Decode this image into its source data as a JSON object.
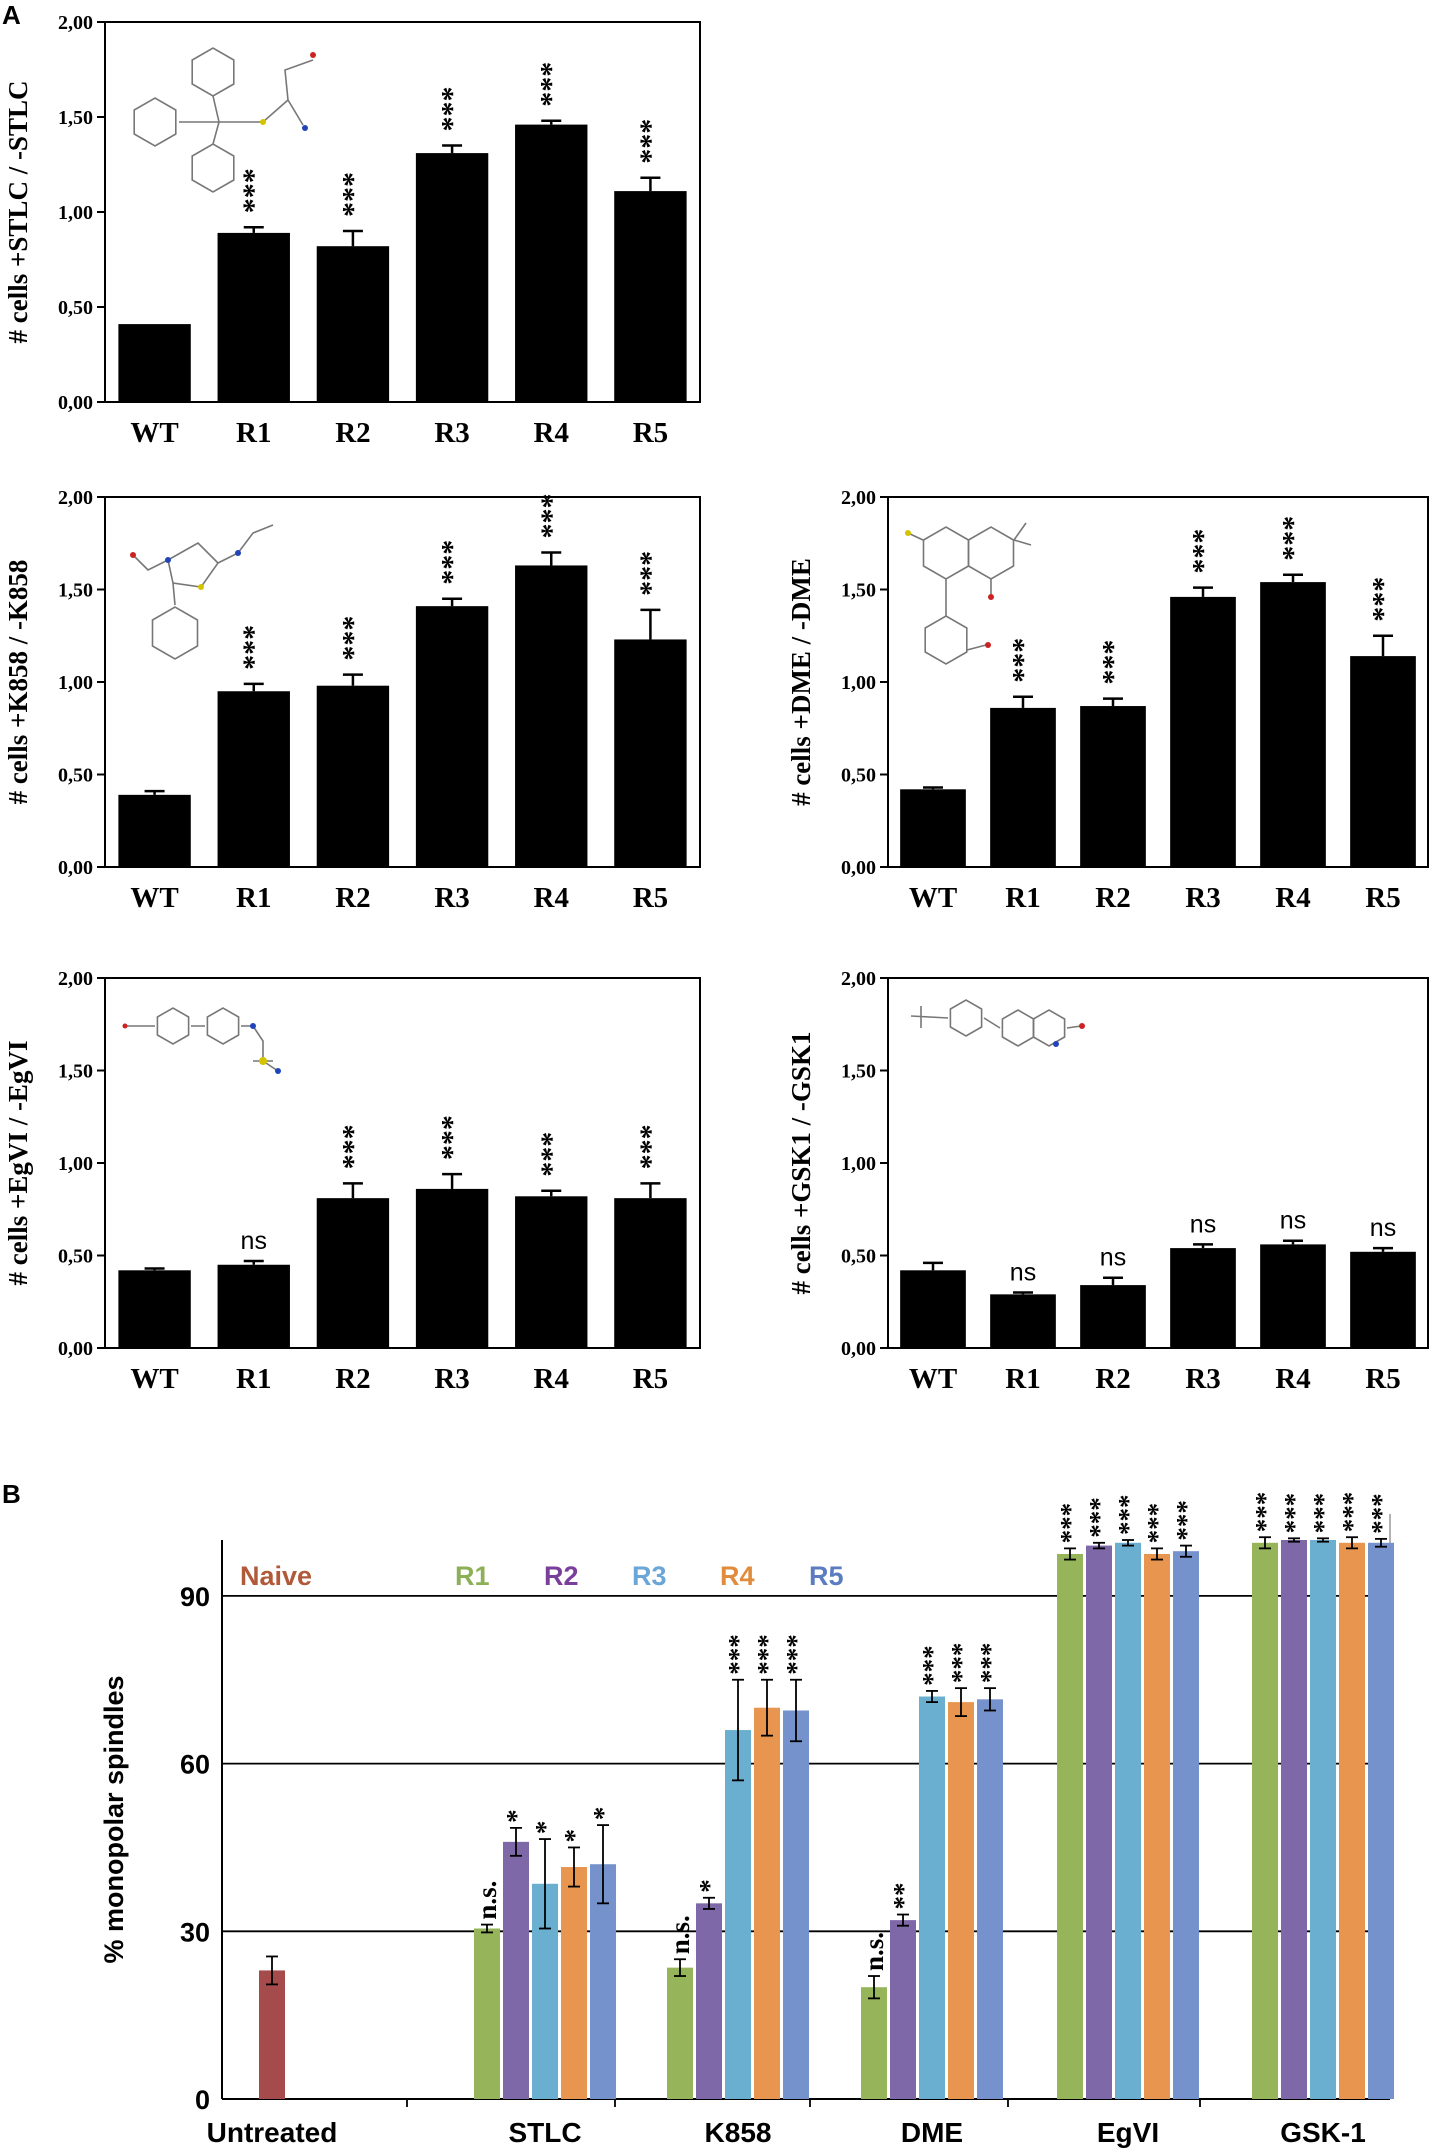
{
  "panel_labels": {
    "a": "A",
    "b": "B"
  },
  "charts_a": [
    {
      "id": "stlc",
      "ylabel": "# cells +STLC / -STLC",
      "categories": [
        "WT",
        "R1",
        "R2",
        "R3",
        "R4",
        "R5"
      ],
      "values": [
        0.41,
        0.89,
        0.82,
        1.31,
        1.46,
        1.11
      ],
      "errors": [
        0.0,
        0.03,
        0.08,
        0.04,
        0.02,
        0.07
      ],
      "annotations": [
        "",
        "***",
        "***",
        "***",
        "***",
        "***"
      ],
      "yticks": [
        "0,00",
        "0,50",
        "1,00",
        "1,50",
        "2,00"
      ],
      "ylim": [
        0,
        2
      ],
      "structure_icon": "stlc-structure"
    },
    {
      "id": "k858",
      "ylabel": "# cells +K858 / -K858",
      "categories": [
        "WT",
        "R1",
        "R2",
        "R3",
        "R4",
        "R5"
      ],
      "values": [
        0.39,
        0.95,
        0.98,
        1.41,
        1.63,
        1.23
      ],
      "errors": [
        0.02,
        0.04,
        0.06,
        0.04,
        0.07,
        0.16
      ],
      "annotations": [
        "",
        "***",
        "***",
        "***",
        "***",
        "***"
      ],
      "yticks": [
        "0,00",
        "0,50",
        "1,00",
        "1,50",
        "2,00"
      ],
      "ylim": [
        0,
        2
      ],
      "structure_icon": "k858-structure"
    },
    {
      "id": "dme",
      "ylabel": "# cells +DME / -DME",
      "categories": [
        "WT",
        "R1",
        "R2",
        "R3",
        "R4",
        "R5"
      ],
      "values": [
        0.42,
        0.86,
        0.87,
        1.46,
        1.54,
        1.14
      ],
      "errors": [
        0.01,
        0.06,
        0.04,
        0.05,
        0.04,
        0.11
      ],
      "annotations": [
        "",
        "***",
        "***",
        "***",
        "***",
        "***"
      ],
      "yticks": [
        "0,00",
        "0,50",
        "1,00",
        "1,50",
        "2,00"
      ],
      "ylim": [
        0,
        2
      ],
      "structure_icon": "dme-structure"
    },
    {
      "id": "egvi",
      "ylabel": "# cells +EgVI / -EgVI",
      "categories": [
        "WT",
        "R1",
        "R2",
        "R3",
        "R4",
        "R5"
      ],
      "values": [
        0.42,
        0.45,
        0.81,
        0.86,
        0.82,
        0.81
      ],
      "errors": [
        0.01,
        0.02,
        0.08,
        0.08,
        0.03,
        0.08
      ],
      "annotations": [
        "",
        "ns",
        "***",
        "***",
        "***",
        "***"
      ],
      "yticks": [
        "0,00",
        "0,50",
        "1,00",
        "1,50",
        "2,00"
      ],
      "ylim": [
        0,
        2
      ],
      "structure_icon": "egvi-structure"
    },
    {
      "id": "gsk1",
      "ylabel": "# cells +GSK1 / -GSK1",
      "categories": [
        "WT",
        "R1",
        "R2",
        "R3",
        "R4",
        "R5"
      ],
      "values": [
        0.42,
        0.29,
        0.34,
        0.54,
        0.56,
        0.52
      ],
      "errors": [
        0.04,
        0.01,
        0.04,
        0.02,
        0.02,
        0.02
      ],
      "annotations": [
        "",
        "ns",
        "ns",
        "ns",
        "ns",
        "ns"
      ],
      "yticks": [
        "0,00",
        "0,50",
        "1,00",
        "1,50",
        "2,00"
      ],
      "ylim": [
        0,
        2
      ],
      "structure_icon": "gsk1-structure"
    }
  ],
  "chart_data": {
    "type": "bar",
    "ylabel": "% monopolar spindles",
    "xlabel": "",
    "ylim": [
      0,
      100
    ],
    "yticks": [
      "0",
      "30",
      "60",
      "90"
    ],
    "grid": true,
    "categories": [
      "Untreated",
      "STLC",
      "K858",
      "DME",
      "EgVI",
      "GSK-1"
    ],
    "legend": [
      {
        "name": "Naive",
        "color": "#b05a3a"
      },
      {
        "name": "R1",
        "color": "#8db057"
      },
      {
        "name": "R2",
        "color": "#7a3f9a"
      },
      {
        "name": "R3",
        "color": "#6aa6d8"
      },
      {
        "name": "R4",
        "color": "#e08c3c"
      },
      {
        "name": "R5",
        "color": "#5b7cc0"
      }
    ],
    "groups": [
      {
        "category": "Untreated",
        "bars": [
          {
            "series": "Naive",
            "value": 23,
            "error": 2.5,
            "color": "#a64b4b",
            "label": ""
          }
        ]
      },
      {
        "category": "STLC",
        "bars": [
          {
            "series": "R1",
            "value": 30.5,
            "error": 0.7,
            "color": "#96b55a",
            "label": "n.s."
          },
          {
            "series": "R2",
            "value": 46,
            "error": 2.5,
            "color": "#7e68a8",
            "label": "*"
          },
          {
            "series": "R3",
            "value": 38.5,
            "error": 8,
            "color": "#6aaed0",
            "label": "*"
          },
          {
            "series": "R4",
            "value": 41.5,
            "error": 3.5,
            "color": "#e8964f",
            "label": "*"
          },
          {
            "series": "R5",
            "value": 42,
            "error": 7,
            "color": "#7592cc",
            "label": "*"
          }
        ]
      },
      {
        "category": "K858",
        "bars": [
          {
            "series": "R1",
            "value": 23.5,
            "error": 1.5,
            "color": "#96b55a",
            "label": "n.s."
          },
          {
            "series": "R2",
            "value": 35,
            "error": 1,
            "color": "#7e68a8",
            "label": "*"
          },
          {
            "series": "R3",
            "value": 66,
            "error": 9,
            "color": "#6aaed0",
            "label": "***"
          },
          {
            "series": "R4",
            "value": 70,
            "error": 5,
            "color": "#e8964f",
            "label": "***"
          },
          {
            "series": "R5",
            "value": 69.5,
            "error": 5.5,
            "color": "#7592cc",
            "label": "***"
          }
        ]
      },
      {
        "category": "DME",
        "bars": [
          {
            "series": "R1",
            "value": 20,
            "error": 2,
            "color": "#96b55a",
            "label": "n.s."
          },
          {
            "series": "R2",
            "value": 32,
            "error": 1,
            "color": "#7e68a8",
            "label": "**"
          },
          {
            "series": "R3",
            "value": 72,
            "error": 1,
            "color": "#6aaed0",
            "label": "***"
          },
          {
            "series": "R4",
            "value": 71,
            "error": 2.5,
            "color": "#e8964f",
            "label": "***"
          },
          {
            "series": "R5",
            "value": 71.5,
            "error": 2,
            "color": "#7592cc",
            "label": "***"
          }
        ]
      },
      {
        "category": "EgVI",
        "bars": [
          {
            "series": "R1",
            "value": 97.5,
            "error": 1,
            "color": "#96b55a",
            "label": "***"
          },
          {
            "series": "R2",
            "value": 99,
            "error": 0.5,
            "color": "#7e68a8",
            "label": "***"
          },
          {
            "series": "R3",
            "value": 99.5,
            "error": 0.5,
            "color": "#6aaed0",
            "label": "***"
          },
          {
            "series": "R4",
            "value": 97.5,
            "error": 1,
            "color": "#e8964f",
            "label": "***"
          },
          {
            "series": "R5",
            "value": 98,
            "error": 1,
            "color": "#7592cc",
            "label": "***"
          }
        ]
      },
      {
        "category": "GSK-1",
        "bars": [
          {
            "series": "R1",
            "value": 99.5,
            "error": 1,
            "color": "#96b55a",
            "label": "***"
          },
          {
            "series": "R2",
            "value": 100,
            "error": 0.3,
            "color": "#7e68a8",
            "label": "***"
          },
          {
            "series": "R3",
            "value": 100,
            "error": 0.3,
            "color": "#6aaed0",
            "label": "***"
          },
          {
            "series": "R4",
            "value": 99.5,
            "error": 1,
            "color": "#e8964f",
            "label": "***"
          },
          {
            "series": "R5",
            "value": 99.5,
            "error": 0.7,
            "color": "#7592cc",
            "label": "***"
          }
        ]
      }
    ]
  }
}
